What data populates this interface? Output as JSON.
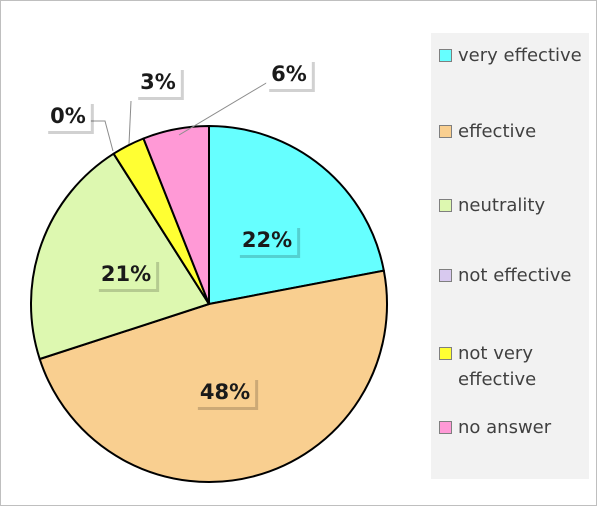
{
  "chart_data": {
    "type": "pie",
    "categories": [
      "very effective",
      "effective",
      "neutrality",
      "not effective",
      "not very effective",
      "no answer"
    ],
    "values": [
      22,
      48,
      21,
      0,
      3,
      6
    ],
    "labels": [
      "22%",
      "48%",
      "21%",
      "0%",
      "3%",
      "6%"
    ],
    "colors": [
      "#66ffff",
      "#f9cf90",
      "#ddf8b0",
      "#d8c9ef",
      "#ffff33",
      "#ff99d6"
    ],
    "start_angle_deg": 0,
    "direction": "clockwise",
    "legend_position": "right"
  }
}
